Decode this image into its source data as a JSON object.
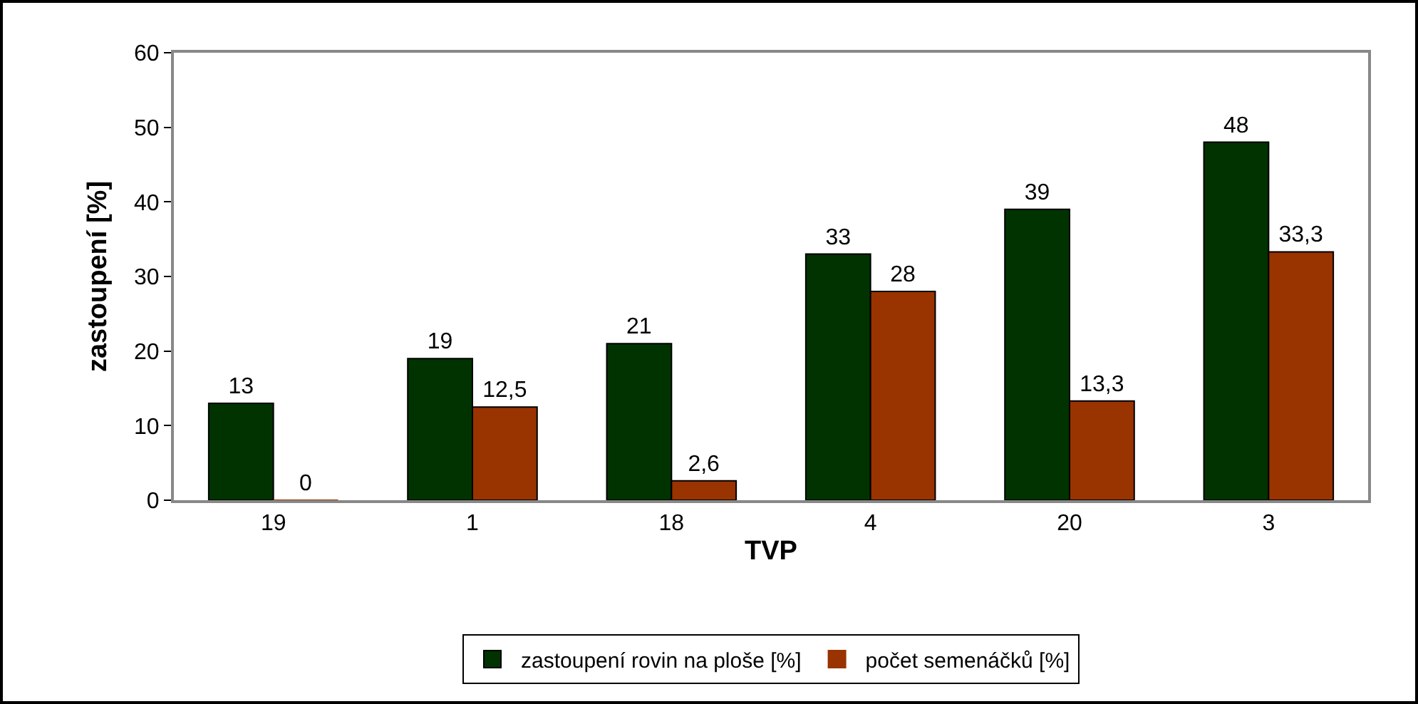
{
  "chart_data": {
    "type": "bar",
    "xlabel": "TVP",
    "ylabel": "zastoupení [%]",
    "categories": [
      "19",
      "1",
      "18",
      "4",
      "20",
      "3"
    ],
    "series": [
      {
        "name": "zastoupení rovin na ploše [%]",
        "color": "#003300",
        "values": [
          13,
          19,
          21,
          33,
          39,
          48
        ],
        "value_labels": [
          "13",
          "19",
          "21",
          "33",
          "39",
          "48"
        ]
      },
      {
        "name": "počet semenáčků [%]",
        "color": "#993300",
        "values": [
          0,
          12.5,
          2.6,
          28,
          13.3,
          33.3
        ],
        "value_labels": [
          "0",
          "12,5",
          "2,6",
          "28",
          "13,3",
          "33,3"
        ]
      }
    ],
    "ylim": [
      0,
      60
    ],
    "yticks": [
      0,
      10,
      20,
      30,
      40,
      50,
      60
    ],
    "grid": false,
    "legend": "bottom"
  }
}
